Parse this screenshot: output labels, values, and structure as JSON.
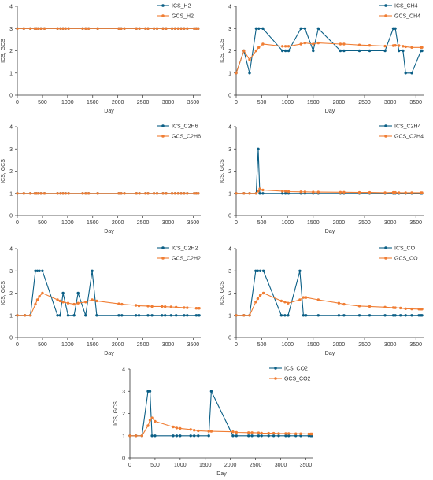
{
  "colors": {
    "ics": "#0b5f86",
    "gcs": "#f07d33",
    "axis": "#333333"
  },
  "common": {
    "xlabel": "Day",
    "ylabel": "ICS, GCS",
    "xticks": [
      0,
      500,
      1000,
      1500,
      2000,
      2500,
      3000,
      3500
    ],
    "yticks": [
      0,
      1,
      2,
      3,
      4
    ],
    "xlim": [
      0,
      3650
    ],
    "ylim": [
      0,
      4
    ]
  },
  "chart_data": [
    {
      "type": "line",
      "xlabel": "Day",
      "ylabel": "ICS, GCS",
      "xlim": [
        0,
        3650
      ],
      "ylim": [
        0,
        4
      ],
      "legend": "top-right",
      "series": [
        {
          "name": "ICS_H2",
          "x": [
            0,
            130,
            260,
            350,
            380,
            420,
            470,
            540,
            800,
            860,
            910,
            960,
            1020,
            1300,
            1360,
            1420,
            1600,
            2020,
            2070,
            2130,
            2370,
            2430,
            2550,
            2600,
            2720,
            2780,
            2900,
            2960,
            3080,
            3140,
            3200,
            3260,
            3320,
            3380,
            3520,
            3560,
            3600
          ],
          "y": [
            3,
            3,
            3,
            3,
            3,
            3,
            3,
            3,
            3,
            3,
            3,
            3,
            3,
            3,
            3,
            3,
            3,
            3,
            3,
            3,
            3,
            3,
            3,
            3,
            3,
            3,
            3,
            3,
            3,
            3,
            3,
            3,
            3,
            3,
            3,
            3,
            3
          ]
        },
        {
          "name": "GCS_H2",
          "x": [
            0,
            130,
            260,
            350,
            380,
            420,
            470,
            540,
            800,
            860,
            910,
            960,
            1020,
            1300,
            1360,
            1420,
            1600,
            2020,
            2070,
            2130,
            2370,
            2430,
            2550,
            2600,
            2720,
            2780,
            2900,
            2960,
            3080,
            3140,
            3200,
            3260,
            3320,
            3380,
            3520,
            3560,
            3600
          ],
          "y": [
            3,
            3,
            3,
            3,
            3,
            3,
            3,
            3,
            3,
            3,
            3,
            3,
            3,
            3,
            3,
            3,
            3,
            3,
            3,
            3,
            3,
            3,
            3,
            3,
            3,
            3,
            3,
            3,
            3,
            3,
            3,
            3,
            3,
            3,
            3,
            3,
            3
          ]
        }
      ]
    },
    {
      "type": "line",
      "xlabel": "Day",
      "ylabel": "ICS, GCS",
      "xlim": [
        0,
        3650
      ],
      "ylim": [
        0,
        4
      ],
      "legend": "top-right",
      "series": [
        {
          "name": "ICS_CH4",
          "x": [
            0,
            150,
            260,
            390,
            440,
            520,
            900,
            960,
            1020,
            1260,
            1340,
            1500,
            1600,
            2030,
            2100,
            2400,
            2600,
            2900,
            3060,
            3100,
            3170,
            3250,
            3300,
            3420,
            3600,
            3620
          ],
          "y": [
            1,
            2,
            1,
            3,
            3,
            3,
            2,
            2,
            2,
            3,
            3,
            2,
            3,
            2,
            2,
            2,
            2,
            2,
            3,
            3,
            2,
            2,
            1,
            1,
            2,
            2
          ]
        },
        {
          "name": "GCS_CH4",
          "x": [
            0,
            150,
            260,
            390,
            440,
            520,
            900,
            960,
            1020,
            1260,
            1340,
            1500,
            1600,
            2030,
            2100,
            2400,
            2600,
            2900,
            3060,
            3100,
            3170,
            3250,
            3300,
            3420,
            3600,
            3620
          ],
          "y": [
            1,
            2,
            1.6,
            2.0,
            2.15,
            2.3,
            2.2,
            2.2,
            2.2,
            2.3,
            2.35,
            2.3,
            2.35,
            2.3,
            2.3,
            2.26,
            2.24,
            2.21,
            2.23,
            2.24,
            2.23,
            2.2,
            2.18,
            2.15,
            2.15,
            2.15
          ]
        }
      ]
    },
    {
      "type": "line",
      "xlabel": "Day",
      "ylabel": "ICS, GCS",
      "xlim": [
        0,
        3650
      ],
      "ylim": [
        0,
        4
      ],
      "legend": "top-right",
      "series": [
        {
          "name": "ICS_C2H6",
          "x": [
            0,
            130,
            260,
            350,
            380,
            420,
            470,
            540,
            800,
            860,
            910,
            960,
            1020,
            1300,
            1360,
            1420,
            1600,
            2020,
            2070,
            2130,
            2370,
            2430,
            2550,
            2600,
            2720,
            2780,
            2900,
            2960,
            3080,
            3140,
            3200,
            3260,
            3320,
            3380,
            3520,
            3560,
            3600
          ],
          "y": [
            1,
            1,
            1,
            1,
            1,
            1,
            1,
            1,
            1,
            1,
            1,
            1,
            1,
            1,
            1,
            1,
            1,
            1,
            1,
            1,
            1,
            1,
            1,
            1,
            1,
            1,
            1,
            1,
            1,
            1,
            1,
            1,
            1,
            1,
            1,
            1,
            1
          ]
        },
        {
          "name": "GCS_C2H6",
          "x": [
            0,
            130,
            260,
            350,
            380,
            420,
            470,
            540,
            800,
            860,
            910,
            960,
            1020,
            1300,
            1360,
            1420,
            1600,
            2020,
            2070,
            2130,
            2370,
            2430,
            2550,
            2600,
            2720,
            2780,
            2900,
            2960,
            3080,
            3140,
            3200,
            3260,
            3320,
            3380,
            3520,
            3560,
            3600
          ],
          "y": [
            1,
            1,
            1,
            1,
            1,
            1,
            1,
            1,
            1,
            1,
            1,
            1,
            1,
            1,
            1,
            1,
            1,
            1,
            1,
            1,
            1,
            1,
            1,
            1,
            1,
            1,
            1,
            1,
            1,
            1,
            1,
            1,
            1,
            1,
            1,
            1,
            1
          ]
        }
      ]
    },
    {
      "type": "line",
      "xlabel": "Day",
      "ylabel": "ICS, GCS",
      "xlim": [
        0,
        3650
      ],
      "ylim": [
        0,
        4
      ],
      "legend": "top-right",
      "series": [
        {
          "name": "ICS_C2H4",
          "x": [
            0,
            150,
            260,
            390,
            430,
            460,
            520,
            900,
            960,
            1020,
            1260,
            1340,
            1500,
            1600,
            2030,
            2100,
            2400,
            2600,
            2900,
            3060,
            3100,
            3170,
            3300,
            3420,
            3600,
            3620
          ],
          "y": [
            1,
            1,
            1,
            1,
            3,
            1,
            1,
            1,
            1,
            1,
            1,
            1,
            1,
            1,
            1,
            1,
            1,
            1,
            1,
            1,
            1,
            1,
            1,
            1,
            1,
            1
          ]
        },
        {
          "name": "GCS_C2H4",
          "x": [
            0,
            150,
            260,
            390,
            430,
            460,
            520,
            900,
            960,
            1020,
            1260,
            1340,
            1500,
            1600,
            2030,
            2100,
            2400,
            2600,
            2900,
            3060,
            3100,
            3170,
            3300,
            3420,
            3600,
            3620
          ],
          "y": [
            1,
            1,
            1,
            1,
            1.1,
            1.2,
            1.15,
            1.1,
            1.1,
            1.08,
            1.07,
            1.07,
            1.06,
            1.06,
            1.05,
            1.05,
            1.04,
            1.04,
            1.03,
            1.04,
            1.04,
            1.03,
            1.03,
            1.03,
            1.03,
            1.03
          ]
        }
      ]
    },
    {
      "type": "line",
      "xlabel": "Day",
      "ylabel": "ICS, GCS",
      "xlim": [
        0,
        3650
      ],
      "ylim": [
        0,
        4
      ],
      "legend": "top-right",
      "series": [
        {
          "name": "ICS_C2H2",
          "x": [
            0,
            150,
            260,
            360,
            400,
            440,
            500,
            800,
            850,
            910,
            1010,
            1130,
            1210,
            1360,
            1490,
            1580,
            2020,
            2080,
            2360,
            2420,
            2600,
            2680,
            2880,
            2940,
            3060,
            3160,
            3320,
            3380,
            3560,
            3600,
            3620
          ],
          "y": [
            1,
            1,
            1,
            3,
            3,
            3,
            3,
            1,
            1,
            2,
            1,
            1,
            2,
            1,
            3,
            1,
            1,
            1,
            1,
            1,
            1,
            1,
            1,
            1,
            1,
            1,
            1,
            1,
            1,
            1,
            1
          ]
        },
        {
          "name": "GCS_C2H2",
          "x": [
            0,
            150,
            260,
            360,
            400,
            440,
            500,
            800,
            850,
            910,
            1010,
            1130,
            1210,
            1360,
            1490,
            1580,
            2020,
            2080,
            2360,
            2420,
            2600,
            2680,
            2880,
            2940,
            3060,
            3160,
            3320,
            3380,
            3560,
            3600,
            3620
          ],
          "y": [
            1,
            1,
            1,
            1.5,
            1.7,
            1.85,
            2.0,
            1.7,
            1.65,
            1.6,
            1.55,
            1.5,
            1.55,
            1.6,
            1.7,
            1.65,
            1.52,
            1.5,
            1.45,
            1.43,
            1.42,
            1.4,
            1.4,
            1.39,
            1.38,
            1.37,
            1.35,
            1.34,
            1.32,
            1.32,
            1.32
          ]
        }
      ]
    },
    {
      "type": "line",
      "xlabel": "Day",
      "ylabel": "ICS, GCS",
      "xlim": [
        0,
        3650
      ],
      "ylim": [
        0,
        4
      ],
      "legend": "top-right",
      "series": [
        {
          "name": "ICS_CO",
          "x": [
            0,
            150,
            260,
            380,
            420,
            470,
            530,
            880,
            950,
            1010,
            1240,
            1310,
            1360,
            1600,
            2000,
            2100,
            2400,
            2600,
            2900,
            3060,
            3100,
            3200,
            3300,
            3420,
            3560,
            3600,
            3620
          ],
          "y": [
            1,
            1,
            1,
            3,
            3,
            3,
            3,
            1,
            1,
            1,
            3,
            1,
            1,
            1,
            1,
            1,
            1,
            1,
            1,
            1,
            1,
            1,
            1,
            1,
            1,
            1,
            1
          ]
        },
        {
          "name": "GCS_CO",
          "x": [
            0,
            150,
            260,
            380,
            420,
            470,
            530,
            880,
            950,
            1010,
            1240,
            1310,
            1360,
            1600,
            2000,
            2100,
            2400,
            2600,
            2900,
            3060,
            3100,
            3200,
            3300,
            3420,
            3560,
            3600,
            3620
          ],
          "y": [
            1,
            1,
            1,
            1.6,
            1.75,
            1.9,
            2.0,
            1.65,
            1.6,
            1.55,
            1.7,
            1.8,
            1.8,
            1.7,
            1.55,
            1.5,
            1.42,
            1.4,
            1.37,
            1.35,
            1.34,
            1.33,
            1.3,
            1.29,
            1.28,
            1.28,
            1.28
          ]
        }
      ]
    },
    {
      "type": "line",
      "xlabel": "Day",
      "ylabel": "ICS, GCS",
      "xlim": [
        0,
        3650
      ],
      "ylim": [
        0,
        4
      ],
      "legend": "top-right",
      "series": [
        {
          "name": "ICS_CO2",
          "x": [
            0,
            120,
            240,
            360,
            400,
            440,
            500,
            860,
            930,
            1000,
            1210,
            1280,
            1360,
            1570,
            1620,
            2050,
            2120,
            2360,
            2430,
            2560,
            2620,
            2760,
            2860,
            2960,
            3100,
            3160,
            3300,
            3400,
            3560,
            3600,
            3620
          ],
          "y": [
            1,
            1,
            1,
            3,
            3,
            1,
            1,
            1,
            1,
            1,
            1,
            1,
            1,
            1,
            3,
            1,
            1,
            1,
            1,
            1,
            1,
            1,
            1,
            1,
            1,
            1,
            1,
            1,
            1,
            1,
            1
          ]
        },
        {
          "name": "GCS_CO2",
          "x": [
            0,
            120,
            240,
            360,
            400,
            440,
            500,
            860,
            930,
            1000,
            1210,
            1280,
            1360,
            1570,
            1620,
            2050,
            2120,
            2360,
            2430,
            2560,
            2620,
            2760,
            2860,
            2960,
            3100,
            3160,
            3300,
            3400,
            3560,
            3600,
            3620
          ],
          "y": [
            1,
            1,
            1,
            1.45,
            1.7,
            1.8,
            1.65,
            1.4,
            1.35,
            1.33,
            1.28,
            1.25,
            1.22,
            1.2,
            1.2,
            1.18,
            1.15,
            1.14,
            1.14,
            1.13,
            1.12,
            1.11,
            1.11,
            1.1,
            1.1,
            1.1,
            1.09,
            1.09,
            1.08,
            1.08,
            1.08
          ]
        }
      ]
    }
  ]
}
